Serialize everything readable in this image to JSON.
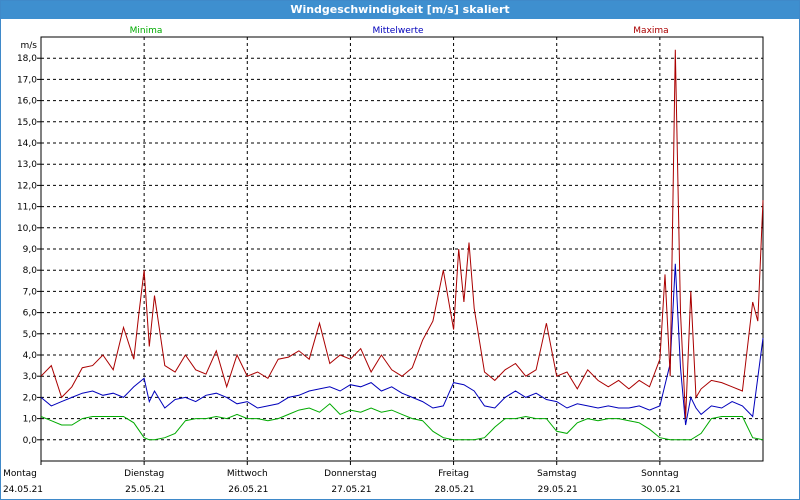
{
  "window": {
    "title": "Windgeschwindigkeit [m/s] skaliert"
  },
  "chart_data": {
    "type": "line",
    "title": "Windgeschwindigkeit [m/s] skaliert",
    "ylabel": "m/s",
    "ylim": [
      -1,
      19
    ],
    "yticks": [
      "0,0",
      "1,0",
      "2,0",
      "3,0",
      "4,0",
      "5,0",
      "6,0",
      "7,0",
      "8,0",
      "9,0",
      "10,0",
      "11,0",
      "12,0",
      "13,0",
      "14,0",
      "15,0",
      "16,0",
      "17,0",
      "18,0"
    ],
    "x_range_days": [
      0,
      7
    ],
    "day_labels": [
      {
        "day": "Montag",
        "date": "24.05.21"
      },
      {
        "day": "Dienstag",
        "date": "25.05.21"
      },
      {
        "day": "Mittwoch",
        "date": "26.05.21"
      },
      {
        "day": "Donnerstag",
        "date": "27.05.21"
      },
      {
        "day": "Freitag",
        "date": "28.05.21"
      },
      {
        "day": "Samstag",
        "date": "29.05.21"
      },
      {
        "day": "Sonntag",
        "date": "30.05.21"
      }
    ],
    "grid": true,
    "series": [
      {
        "name": "Minima",
        "color": "#00aa00",
        "x": [
          0,
          0.1,
          0.2,
          0.3,
          0.4,
          0.5,
          0.6,
          0.7,
          0.8,
          0.9,
          1.0,
          1.05,
          1.1,
          1.2,
          1.3,
          1.4,
          1.5,
          1.6,
          1.7,
          1.8,
          1.9,
          2.0,
          2.1,
          2.2,
          2.3,
          2.4,
          2.5,
          2.6,
          2.7,
          2.8,
          2.9,
          3.0,
          3.1,
          3.2,
          3.3,
          3.4,
          3.5,
          3.6,
          3.7,
          3.8,
          3.9,
          4.0,
          4.1,
          4.2,
          4.3,
          4.4,
          4.5,
          4.6,
          4.7,
          4.8,
          4.9,
          5.0,
          5.1,
          5.2,
          5.3,
          5.4,
          5.5,
          5.6,
          5.7,
          5.8,
          5.9,
          6.0,
          6.1,
          6.2,
          6.3,
          6.4,
          6.5,
          6.6,
          6.7,
          6.8,
          6.9,
          7.0
        ],
        "y": [
          1.1,
          0.9,
          0.7,
          0.7,
          1.0,
          1.1,
          1.1,
          1.1,
          1.1,
          0.8,
          0.1,
          0.0,
          0.0,
          0.1,
          0.3,
          0.9,
          1.0,
          1.0,
          1.1,
          1.0,
          1.2,
          1.0,
          1.0,
          0.9,
          1.0,
          1.2,
          1.4,
          1.5,
          1.3,
          1.7,
          1.2,
          1.4,
          1.3,
          1.5,
          1.3,
          1.4,
          1.2,
          1.0,
          0.9,
          0.4,
          0.1,
          0.0,
          0.0,
          0.0,
          0.1,
          0.6,
          1.0,
          1.0,
          1.1,
          1.0,
          1.0,
          0.4,
          0.3,
          0.8,
          1.0,
          0.9,
          1.0,
          1.0,
          0.9,
          0.8,
          0.5,
          0.1,
          0.0,
          0.0,
          0.0,
          0.3,
          1.0,
          1.1,
          1.1,
          1.1,
          0.1,
          0.0
        ]
      },
      {
        "name": "Mittelwerte",
        "color": "#0000bb",
        "x": [
          0,
          0.1,
          0.2,
          0.3,
          0.4,
          0.5,
          0.6,
          0.7,
          0.8,
          0.9,
          1.0,
          1.05,
          1.1,
          1.2,
          1.3,
          1.4,
          1.5,
          1.6,
          1.7,
          1.8,
          1.9,
          2.0,
          2.1,
          2.2,
          2.3,
          2.4,
          2.5,
          2.6,
          2.7,
          2.8,
          2.9,
          3.0,
          3.1,
          3.2,
          3.3,
          3.4,
          3.5,
          3.6,
          3.7,
          3.8,
          3.9,
          4.0,
          4.1,
          4.2,
          4.3,
          4.4,
          4.5,
          4.6,
          4.7,
          4.8,
          4.9,
          5.0,
          5.1,
          5.2,
          5.3,
          5.4,
          5.5,
          5.6,
          5.7,
          5.8,
          5.9,
          6.0,
          6.1,
          6.15,
          6.2,
          6.25,
          6.3,
          6.35,
          6.4,
          6.5,
          6.6,
          6.7,
          6.8,
          6.9,
          7.0
        ],
        "y": [
          2.0,
          1.6,
          1.8,
          2.0,
          2.2,
          2.3,
          2.1,
          2.2,
          2.0,
          2.5,
          2.9,
          1.8,
          2.3,
          1.5,
          1.9,
          2.0,
          1.8,
          2.1,
          2.2,
          2.0,
          1.7,
          1.8,
          1.5,
          1.6,
          1.7,
          2.0,
          2.1,
          2.3,
          2.4,
          2.5,
          2.3,
          2.6,
          2.5,
          2.7,
          2.3,
          2.5,
          2.2,
          2.0,
          1.8,
          1.5,
          1.6,
          2.7,
          2.6,
          2.3,
          1.6,
          1.5,
          2.0,
          2.3,
          2.0,
          2.2,
          1.9,
          1.8,
          1.5,
          1.7,
          1.6,
          1.5,
          1.6,
          1.5,
          1.5,
          1.6,
          1.4,
          1.6,
          3.6,
          8.3,
          3.4,
          0.7,
          2.0,
          1.5,
          1.2,
          1.6,
          1.5,
          1.8,
          1.6,
          1.1,
          4.8
        ]
      },
      {
        "name": "Maxima",
        "color": "#aa0000",
        "x": [
          0,
          0.1,
          0.2,
          0.3,
          0.4,
          0.5,
          0.6,
          0.7,
          0.8,
          0.9,
          0.95,
          1.0,
          1.05,
          1.1,
          1.2,
          1.3,
          1.4,
          1.5,
          1.6,
          1.7,
          1.8,
          1.9,
          2.0,
          2.1,
          2.2,
          2.3,
          2.4,
          2.5,
          2.6,
          2.7,
          2.8,
          2.9,
          3.0,
          3.1,
          3.2,
          3.3,
          3.4,
          3.5,
          3.6,
          3.7,
          3.8,
          3.9,
          4.0,
          4.05,
          4.1,
          4.15,
          4.2,
          4.3,
          4.4,
          4.5,
          4.6,
          4.7,
          4.8,
          4.9,
          5.0,
          5.1,
          5.2,
          5.3,
          5.4,
          5.5,
          5.6,
          5.7,
          5.8,
          5.9,
          6.0,
          6.05,
          6.1,
          6.15,
          6.2,
          6.25,
          6.3,
          6.35,
          6.4,
          6.5,
          6.6,
          6.7,
          6.8,
          6.9,
          6.95,
          7.0
        ],
        "y": [
          3.0,
          3.5,
          2.0,
          2.5,
          3.4,
          3.5,
          4.0,
          3.3,
          5.3,
          3.8,
          6.0,
          8.0,
          4.4,
          6.8,
          3.5,
          3.2,
          4.0,
          3.3,
          3.1,
          4.2,
          2.5,
          4.0,
          3.0,
          3.2,
          2.9,
          3.8,
          3.9,
          4.2,
          3.8,
          5.5,
          3.6,
          4.0,
          3.8,
          4.3,
          3.2,
          4.0,
          3.3,
          3.0,
          3.4,
          4.7,
          5.6,
          8.0,
          5.2,
          9.0,
          6.5,
          9.3,
          6.2,
          3.2,
          2.8,
          3.3,
          3.6,
          3.0,
          3.3,
          5.5,
          3.0,
          3.2,
          2.4,
          3.3,
          2.8,
          2.5,
          2.8,
          2.4,
          2.8,
          2.5,
          3.8,
          7.8,
          3.0,
          18.4,
          6.0,
          1.0,
          7.0,
          2.0,
          2.4,
          2.8,
          2.7,
          2.5,
          2.3,
          6.5,
          5.6,
          11.3
        ]
      }
    ]
  }
}
